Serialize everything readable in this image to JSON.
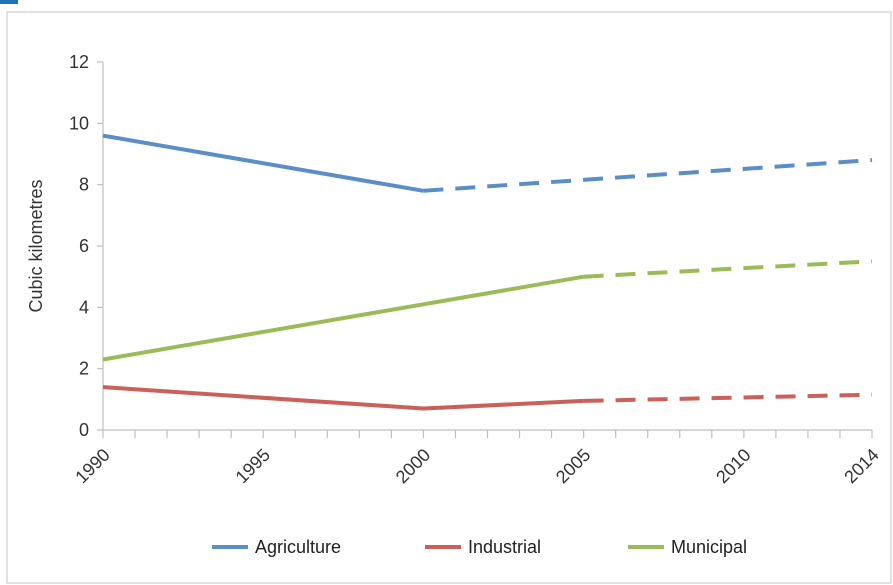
{
  "chart_data": {
    "type": "line",
    "title": "",
    "xlabel": "",
    "ylabel": "Cubic kilometres",
    "x_ticks": [
      "1990",
      "1995",
      "2000",
      "2005",
      "2010",
      "2014"
    ],
    "y_ticks": [
      "0",
      "2",
      "4",
      "6",
      "8",
      "10",
      "12"
    ],
    "ylim": [
      0,
      12
    ],
    "xlim": [
      1990,
      2014
    ],
    "grid": false,
    "legend_position": "bottom",
    "series": [
      {
        "name": "Agriculture",
        "color": "#5b8ec5",
        "solid": [
          [
            1990,
            9.6
          ],
          [
            2000,
            7.8
          ]
        ],
        "dashed": [
          [
            2000,
            7.8
          ],
          [
            2014,
            8.8
          ]
        ]
      },
      {
        "name": "Industrial",
        "color": "#c9605a",
        "solid": [
          [
            1990,
            1.4
          ],
          [
            2000,
            0.7
          ],
          [
            2005,
            0.95
          ]
        ],
        "dashed": [
          [
            2005,
            0.95
          ],
          [
            2014,
            1.15
          ]
        ]
      },
      {
        "name": "Municipal",
        "color": "#9bbb59",
        "solid": [
          [
            1990,
            2.3
          ],
          [
            2005,
            5.0
          ]
        ],
        "dashed": [
          [
            2005,
            5.0
          ],
          [
            2014,
            5.5
          ]
        ]
      }
    ]
  },
  "frame_color": "#d9d9d9",
  "header_bar_color": "#1f73b7"
}
